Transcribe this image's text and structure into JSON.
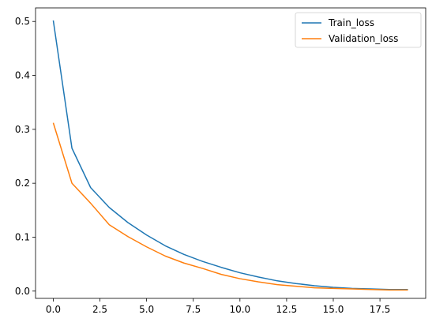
{
  "chart_data": {
    "type": "line",
    "title": "",
    "xlabel": "",
    "ylabel": "",
    "xlim": [
      -0.95,
      19.95
    ],
    "ylim": [
      -0.0135,
      0.5252
    ],
    "x_ticks": [
      0.0,
      2.5,
      5.0,
      7.5,
      10.0,
      12.5,
      15.0,
      17.5
    ],
    "x_tick_labels": [
      "0.0",
      "2.5",
      "5.0",
      "7.5",
      "10.0",
      "12.5",
      "15.0",
      "17.5"
    ],
    "y_ticks": [
      0.0,
      0.1,
      0.2,
      0.3,
      0.4,
      0.5
    ],
    "y_tick_labels": [
      "0.0",
      "0.1",
      "0.2",
      "0.3",
      "0.4",
      "0.5"
    ],
    "grid": false,
    "legend_position": "top-right",
    "x": [
      0,
      1,
      2,
      3,
      4,
      5,
      6,
      7,
      8,
      9,
      10,
      11,
      12,
      13,
      14,
      15,
      16,
      17,
      18,
      19
    ],
    "series": [
      {
        "name": "Train_loss",
        "color": "#1f77b4",
        "values": [
          0.502,
          0.265,
          0.192,
          0.155,
          0.127,
          0.104,
          0.084,
          0.068,
          0.055,
          0.044,
          0.034,
          0.026,
          0.019,
          0.014,
          0.01,
          0.007,
          0.005,
          0.004,
          0.003,
          0.003
        ]
      },
      {
        "name": "Validation_loss",
        "color": "#ff7f0e",
        "values": [
          0.312,
          0.2,
          0.163,
          0.123,
          0.101,
          0.082,
          0.065,
          0.052,
          0.042,
          0.031,
          0.023,
          0.017,
          0.012,
          0.009,
          0.006,
          0.005,
          0.004,
          0.003,
          0.002,
          0.002
        ]
      }
    ]
  }
}
